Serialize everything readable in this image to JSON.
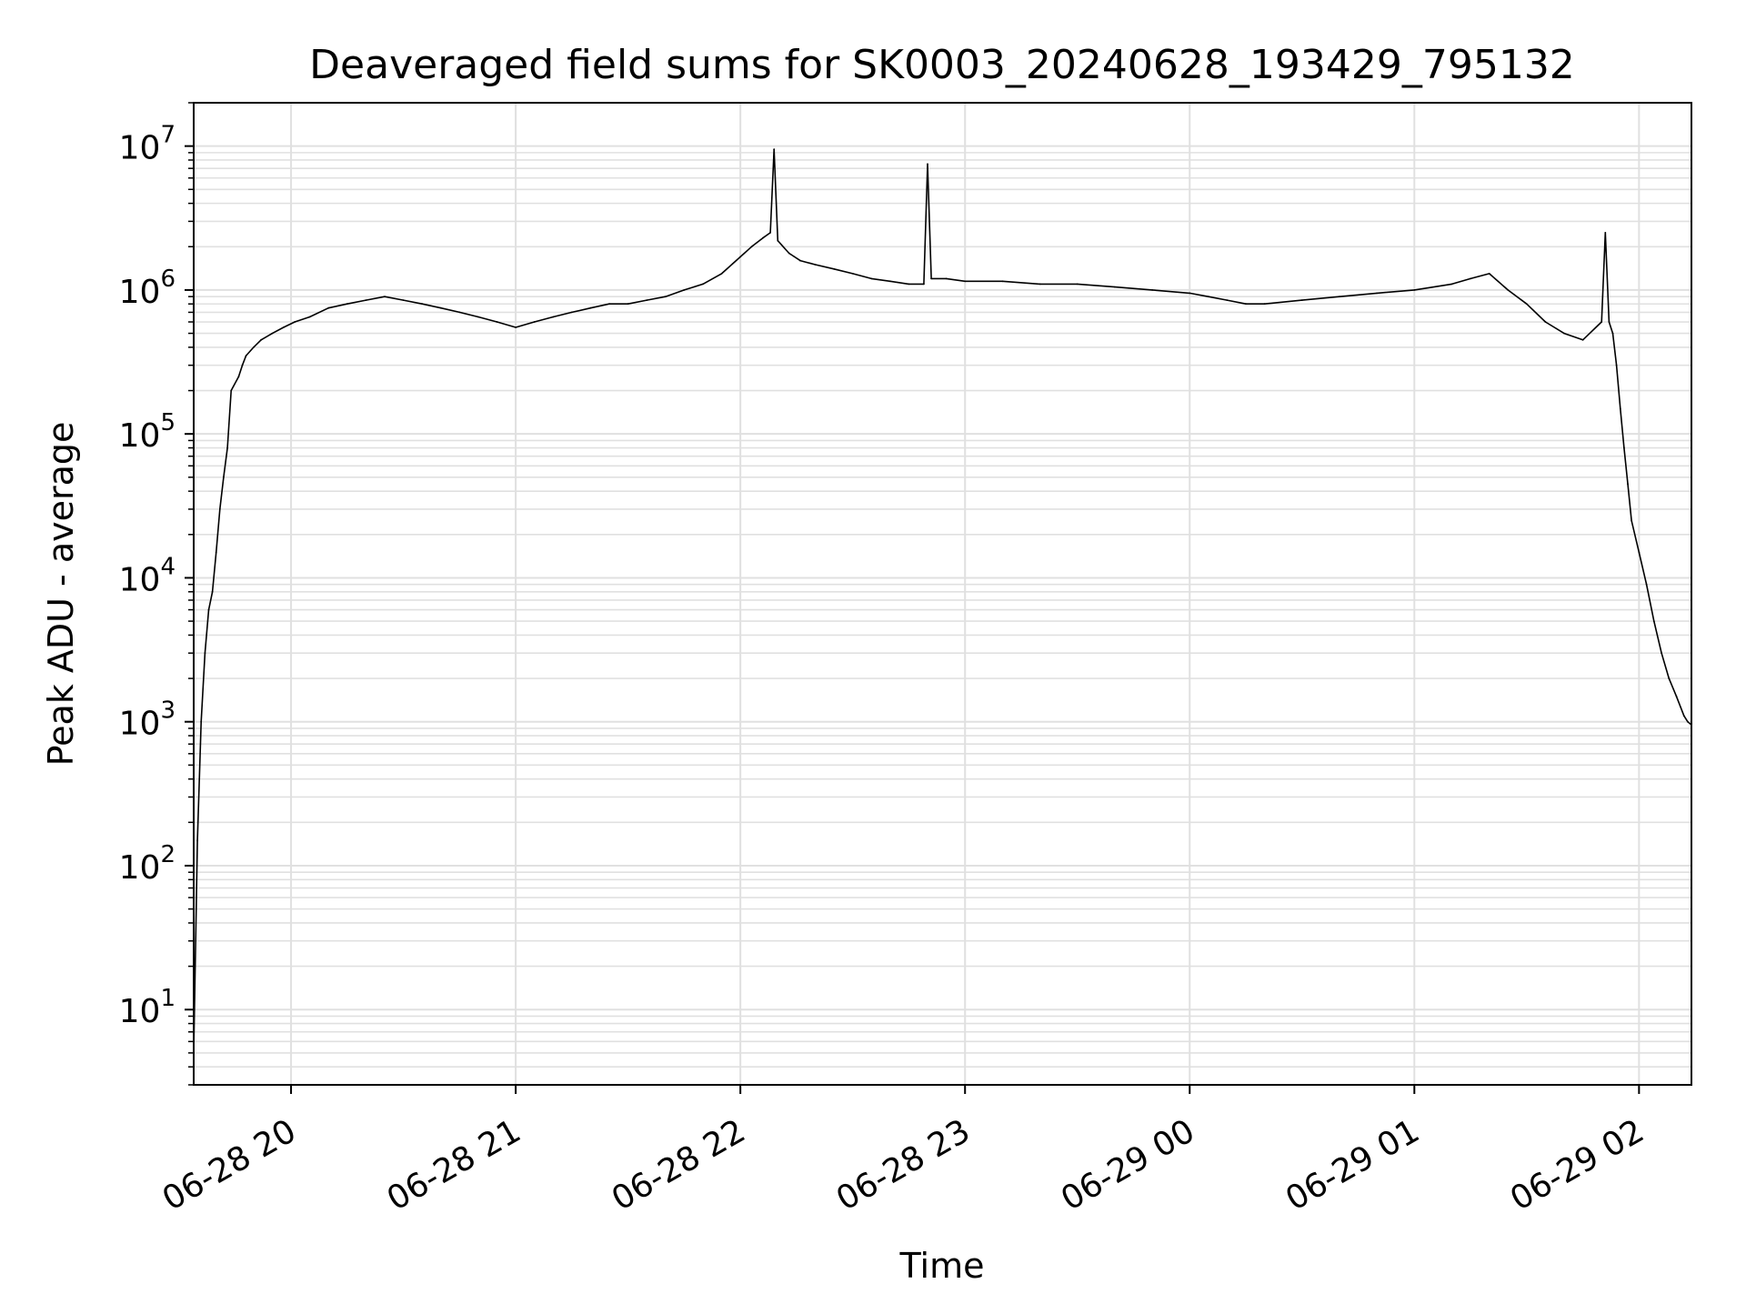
{
  "chart_data": {
    "type": "line",
    "title": "Deaveraged field sums for SK0003_20240628_193429_795132",
    "xlabel": "Time",
    "ylabel": "Peak ADU - average",
    "yscale": "log",
    "xlim": [
      "2024-06-28 19:34",
      "2024-06-29 02:14"
    ],
    "ylim": [
      3,
      20000000
    ],
    "grid": true,
    "legend": "none",
    "line_color": "#000000",
    "grid_color": "#e0e0e0",
    "x_ticks": [
      {
        "t": "2024-06-28 20:00",
        "label": "06-28 20"
      },
      {
        "t": "2024-06-28 21:00",
        "label": "06-28 21"
      },
      {
        "t": "2024-06-28 22:00",
        "label": "06-28 22"
      },
      {
        "t": "2024-06-28 23:00",
        "label": "06-28 23"
      },
      {
        "t": "2024-06-29 00:00",
        "label": "06-29 00"
      },
      {
        "t": "2024-06-29 01:00",
        "label": "06-29 01"
      },
      {
        "t": "2024-06-29 02:00",
        "label": "06-29 02"
      }
    ],
    "y_ticks": [
      {
        "value": 10,
        "base": "10",
        "exp": "1"
      },
      {
        "value": 100,
        "base": "10",
        "exp": "2"
      },
      {
        "value": 1000,
        "base": "10",
        "exp": "3"
      },
      {
        "value": 10000,
        "base": "10",
        "exp": "4"
      },
      {
        "value": 100000,
        "base": "10",
        "exp": "5"
      },
      {
        "value": 1000000,
        "base": "10",
        "exp": "6"
      },
      {
        "value": 10000000,
        "base": "10",
        "exp": "7"
      }
    ],
    "series": [
      {
        "x": [
          "2024-06-28 19:34",
          "2024-06-28 19:35",
          "2024-06-28 19:36",
          "2024-06-28 19:37",
          "2024-06-28 19:38",
          "2024-06-28 19:39",
          "2024-06-28 19:40",
          "2024-06-28 19:41",
          "2024-06-28 19:42",
          "2024-06-28 19:43",
          "2024-06-28 19:44",
          "2024-06-28 19:46",
          "2024-06-28 19:47",
          "2024-06-28 19:48",
          "2024-06-28 19:50",
          "2024-06-28 19:52",
          "2024-06-28 19:55",
          "2024-06-28 19:58",
          "2024-06-28 20:01",
          "2024-06-28 20:05",
          "2024-06-28 20:10",
          "2024-06-28 20:15",
          "2024-06-28 20:20",
          "2024-06-28 20:25",
          "2024-06-28 20:30",
          "2024-06-28 20:35",
          "2024-06-28 20:40",
          "2024-06-28 20:45",
          "2024-06-28 20:50",
          "2024-06-28 20:55",
          "2024-06-28 21:00",
          "2024-06-28 21:05",
          "2024-06-28 21:10",
          "2024-06-28 21:15",
          "2024-06-28 21:20",
          "2024-06-28 21:25",
          "2024-06-28 21:30",
          "2024-06-28 21:35",
          "2024-06-28 21:40",
          "2024-06-28 21:45",
          "2024-06-28 21:50",
          "2024-06-28 21:55",
          "2024-06-28 22:00",
          "2024-06-28 22:03",
          "2024-06-28 22:06",
          "2024-06-28 22:08",
          "2024-06-28 22:09",
          "2024-06-28 22:10",
          "2024-06-28 22:13",
          "2024-06-28 22:16",
          "2024-06-28 22:20",
          "2024-06-28 22:25",
          "2024-06-28 22:30",
          "2024-06-28 22:35",
          "2024-06-28 22:40",
          "2024-06-28 22:45",
          "2024-06-28 22:49",
          "2024-06-28 22:50",
          "2024-06-28 22:51",
          "2024-06-28 22:55",
          "2024-06-28 23:00",
          "2024-06-28 23:10",
          "2024-06-28 23:20",
          "2024-06-28 23:30",
          "2024-06-28 23:40",
          "2024-06-28 23:50",
          "2024-06-29 00:00",
          "2024-06-29 00:05",
          "2024-06-29 00:10",
          "2024-06-29 00:15",
          "2024-06-29 00:20",
          "2024-06-29 00:30",
          "2024-06-29 00:40",
          "2024-06-29 00:50",
          "2024-06-29 01:00",
          "2024-06-29 01:10",
          "2024-06-29 01:15",
          "2024-06-29 01:20",
          "2024-06-29 01:25",
          "2024-06-29 01:30",
          "2024-06-29 01:35",
          "2024-06-29 01:40",
          "2024-06-29 01:45",
          "2024-06-29 01:50",
          "2024-06-29 01:51",
          "2024-06-29 01:52",
          "2024-06-29 01:53",
          "2024-06-29 01:54",
          "2024-06-29 01:55",
          "2024-06-29 01:56",
          "2024-06-29 01:57",
          "2024-06-29 01:58",
          "2024-06-29 02:00",
          "2024-06-29 02:02",
          "2024-06-29 02:04",
          "2024-06-29 02:06",
          "2024-06-29 02:08",
          "2024-06-29 02:10",
          "2024-06-29 02:12",
          "2024-06-29 02:13",
          "2024-06-29 02:14"
        ],
        "y": [
          5,
          150,
          1000,
          3000,
          6000,
          8000,
          15000,
          30000,
          50000,
          80000,
          200000,
          250000,
          300000,
          350000,
          400000,
          450000,
          500000,
          550000,
          600000,
          650000,
          750000,
          800000,
          850000,
          900000,
          850000,
          800000,
          750000,
          700000,
          650000,
          600000,
          550000,
          600000,
          650000,
          700000,
          750000,
          800000,
          800000,
          850000,
          900000,
          1000000,
          1100000,
          1300000,
          1700000,
          2000000,
          2300000,
          2500000,
          9500000,
          2200000,
          1800000,
          1600000,
          1500000,
          1400000,
          1300000,
          1200000,
          1150000,
          1100000,
          1100000,
          7500000,
          1200000,
          1200000,
          1150000,
          1150000,
          1100000,
          1100000,
          1050000,
          1000000,
          950000,
          900000,
          850000,
          800000,
          800000,
          850000,
          900000,
          950000,
          1000000,
          1100000,
          1200000,
          1300000,
          1000000,
          800000,
          600000,
          500000,
          450000,
          600000,
          2500000,
          600000,
          500000,
          300000,
          150000,
          80000,
          45000,
          25000,
          15000,
          9000,
          5000,
          3000,
          2000,
          1500,
          1100,
          1000,
          950
        ]
      }
    ]
  }
}
